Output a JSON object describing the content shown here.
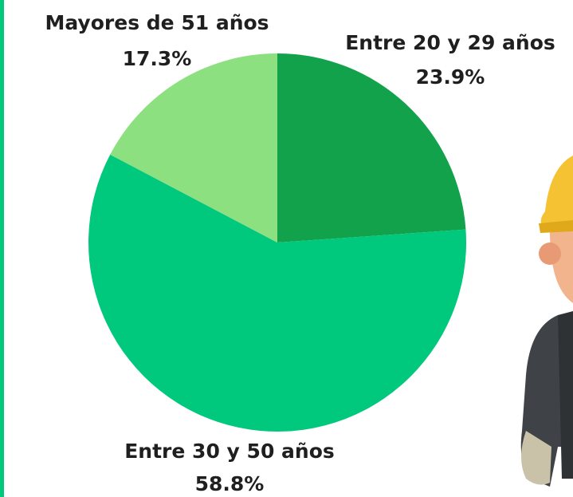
{
  "chart_data": {
    "type": "pie",
    "categories": [
      "Entre 20 y 29 años",
      "Entre 30 y 50 años",
      "Mayores de 51 años"
    ],
    "values": [
      23.9,
      58.8,
      17.3
    ],
    "value_labels": [
      "23.9%",
      "58.8%",
      "17.3%"
    ],
    "colors": [
      "#12a24b",
      "#00c87d",
      "#8ce07f"
    ]
  }
}
